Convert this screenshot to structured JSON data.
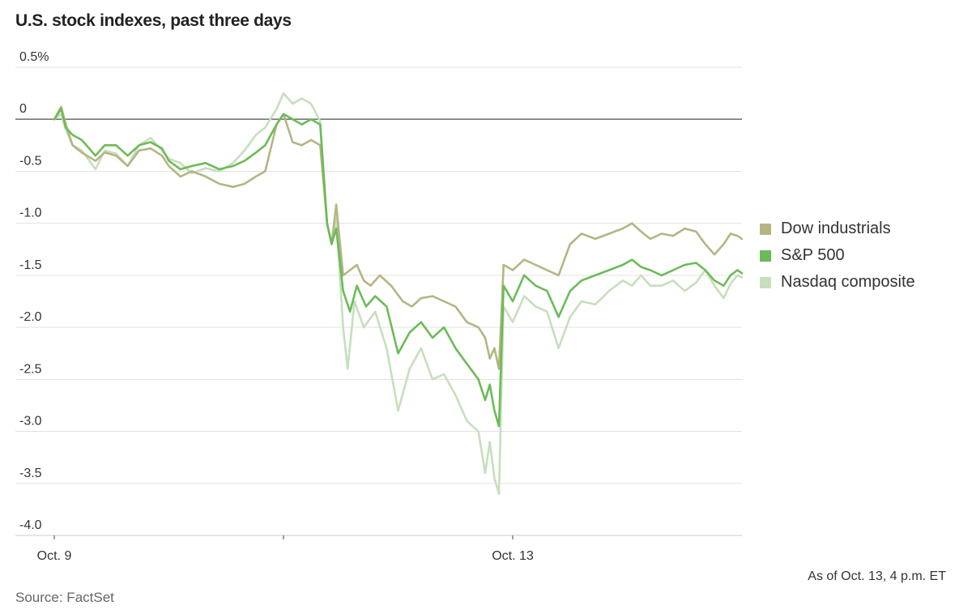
{
  "chart_data": {
    "type": "line",
    "title": "U.S. stock indexes, past three days",
    "ylim": [
      -4.0,
      0.5
    ],
    "y_ticks": [
      {
        "value": 0.5,
        "label": "0.5%"
      },
      {
        "value": 0,
        "label": "0"
      },
      {
        "value": -0.5,
        "label": "-0.5"
      },
      {
        "value": -1.0,
        "label": "-1.0"
      },
      {
        "value": -1.5,
        "label": "-1.5"
      },
      {
        "value": -2.0,
        "label": "-2.0"
      },
      {
        "value": -2.5,
        "label": "-2.5"
      },
      {
        "value": -3.0,
        "label": "-3.0"
      },
      {
        "value": -3.5,
        "label": "-3.5"
      },
      {
        "value": -4.0,
        "label": "-4.0"
      }
    ],
    "x_ticks": [
      {
        "pos": 0,
        "label": "Oct. 9"
      },
      {
        "pos": 1,
        "label": ""
      },
      {
        "pos": 2,
        "label": "Oct. 13"
      }
    ],
    "xlim": [
      0,
      3
    ],
    "grid": true,
    "legend": "right",
    "series": [
      {
        "name": "Nasdaq composite",
        "color": "#c6dfbd",
        "points": [
          [
            0,
            0
          ],
          [
            0.03,
            0.05
          ],
          [
            0.05,
            -0.1
          ],
          [
            0.08,
            -0.25
          ],
          [
            0.12,
            -0.3
          ],
          [
            0.18,
            -0.48
          ],
          [
            0.22,
            -0.3
          ],
          [
            0.27,
            -0.33
          ],
          [
            0.32,
            -0.45
          ],
          [
            0.37,
            -0.25
          ],
          [
            0.42,
            -0.18
          ],
          [
            0.47,
            -0.3
          ],
          [
            0.5,
            -0.38
          ],
          [
            0.55,
            -0.42
          ],
          [
            0.6,
            -0.52
          ],
          [
            0.66,
            -0.47
          ],
          [
            0.72,
            -0.5
          ],
          [
            0.78,
            -0.42
          ],
          [
            0.83,
            -0.3
          ],
          [
            0.88,
            -0.15
          ],
          [
            0.92,
            -0.08
          ],
          [
            0.97,
            0.1
          ],
          [
            1.0,
            0.25
          ],
          [
            1.04,
            0.15
          ],
          [
            1.08,
            0.2
          ],
          [
            1.12,
            0.15
          ],
          [
            1.16,
            -0.02
          ],
          [
            1.19,
            -1.0
          ],
          [
            1.21,
            -1.2
          ],
          [
            1.23,
            -0.95
          ],
          [
            1.26,
            -2.0
          ],
          [
            1.28,
            -2.4
          ],
          [
            1.31,
            -1.75
          ],
          [
            1.35,
            -2.0
          ],
          [
            1.4,
            -1.85
          ],
          [
            1.45,
            -2.2
          ],
          [
            1.5,
            -2.8
          ],
          [
            1.55,
            -2.4
          ],
          [
            1.6,
            -2.2
          ],
          [
            1.65,
            -2.5
          ],
          [
            1.7,
            -2.45
          ],
          [
            1.75,
            -2.65
          ],
          [
            1.8,
            -2.9
          ],
          [
            1.85,
            -3.0
          ],
          [
            1.88,
            -3.4
          ],
          [
            1.9,
            -3.1
          ],
          [
            1.92,
            -3.45
          ],
          [
            1.94,
            -3.6
          ],
          [
            1.96,
            -1.8
          ],
          [
            2.0,
            -1.95
          ],
          [
            2.05,
            -1.7
          ],
          [
            2.1,
            -1.8
          ],
          [
            2.15,
            -1.85
          ],
          [
            2.2,
            -2.2
          ],
          [
            2.25,
            -1.9
          ],
          [
            2.3,
            -1.75
          ],
          [
            2.36,
            -1.78
          ],
          [
            2.42,
            -1.65
          ],
          [
            2.48,
            -1.55
          ],
          [
            2.52,
            -1.6
          ],
          [
            2.56,
            -1.5
          ],
          [
            2.6,
            -1.6
          ],
          [
            2.65,
            -1.6
          ],
          [
            2.7,
            -1.55
          ],
          [
            2.75,
            -1.65
          ],
          [
            2.8,
            -1.57
          ],
          [
            2.84,
            -1.45
          ],
          [
            2.88,
            -1.6
          ],
          [
            2.92,
            -1.72
          ],
          [
            2.95,
            -1.58
          ],
          [
            2.98,
            -1.5
          ],
          [
            3.0,
            -1.52
          ]
        ]
      },
      {
        "name": "Dow industrials",
        "color": "#b5b584",
        "points": [
          [
            0,
            0
          ],
          [
            0.03,
            0.12
          ],
          [
            0.05,
            -0.05
          ],
          [
            0.08,
            -0.25
          ],
          [
            0.12,
            -0.32
          ],
          [
            0.18,
            -0.4
          ],
          [
            0.22,
            -0.32
          ],
          [
            0.27,
            -0.35
          ],
          [
            0.32,
            -0.45
          ],
          [
            0.37,
            -0.3
          ],
          [
            0.42,
            -0.28
          ],
          [
            0.47,
            -0.35
          ],
          [
            0.5,
            -0.45
          ],
          [
            0.55,
            -0.55
          ],
          [
            0.6,
            -0.5
          ],
          [
            0.66,
            -0.55
          ],
          [
            0.72,
            -0.62
          ],
          [
            0.78,
            -0.65
          ],
          [
            0.83,
            -0.62
          ],
          [
            0.88,
            -0.55
          ],
          [
            0.92,
            -0.5
          ],
          [
            0.97,
            -0.05
          ],
          [
            1.0,
            0.05
          ],
          [
            1.04,
            -0.22
          ],
          [
            1.08,
            -0.25
          ],
          [
            1.12,
            -0.2
          ],
          [
            1.16,
            -0.25
          ],
          [
            1.19,
            -1.0
          ],
          [
            1.21,
            -1.2
          ],
          [
            1.23,
            -0.82
          ],
          [
            1.26,
            -1.5
          ],
          [
            1.29,
            -1.45
          ],
          [
            1.32,
            -1.4
          ],
          [
            1.35,
            -1.55
          ],
          [
            1.38,
            -1.6
          ],
          [
            1.42,
            -1.5
          ],
          [
            1.47,
            -1.6
          ],
          [
            1.52,
            -1.75
          ],
          [
            1.56,
            -1.8
          ],
          [
            1.6,
            -1.72
          ],
          [
            1.65,
            -1.7
          ],
          [
            1.7,
            -1.75
          ],
          [
            1.75,
            -1.8
          ],
          [
            1.8,
            -1.95
          ],
          [
            1.85,
            -2.0
          ],
          [
            1.88,
            -2.1
          ],
          [
            1.9,
            -2.3
          ],
          [
            1.92,
            -2.2
          ],
          [
            1.94,
            -2.4
          ],
          [
            1.96,
            -1.4
          ],
          [
            2.0,
            -1.45
          ],
          [
            2.05,
            -1.35
          ],
          [
            2.1,
            -1.4
          ],
          [
            2.15,
            -1.45
          ],
          [
            2.2,
            -1.5
          ],
          [
            2.25,
            -1.2
          ],
          [
            2.3,
            -1.1
          ],
          [
            2.36,
            -1.15
          ],
          [
            2.42,
            -1.1
          ],
          [
            2.48,
            -1.05
          ],
          [
            2.52,
            -1.0
          ],
          [
            2.56,
            -1.08
          ],
          [
            2.6,
            -1.15
          ],
          [
            2.65,
            -1.1
          ],
          [
            2.7,
            -1.12
          ],
          [
            2.75,
            -1.05
          ],
          [
            2.8,
            -1.08
          ],
          [
            2.84,
            -1.2
          ],
          [
            2.88,
            -1.3
          ],
          [
            2.92,
            -1.2
          ],
          [
            2.95,
            -1.1
          ],
          [
            2.98,
            -1.12
          ],
          [
            3.0,
            -1.15
          ]
        ]
      },
      {
        "name": "S&P 500",
        "color": "#6cbb58",
        "points": [
          [
            0,
            0
          ],
          [
            0.03,
            0.1
          ],
          [
            0.05,
            -0.08
          ],
          [
            0.08,
            -0.15
          ],
          [
            0.12,
            -0.2
          ],
          [
            0.18,
            -0.35
          ],
          [
            0.22,
            -0.25
          ],
          [
            0.27,
            -0.25
          ],
          [
            0.32,
            -0.35
          ],
          [
            0.37,
            -0.25
          ],
          [
            0.42,
            -0.22
          ],
          [
            0.47,
            -0.28
          ],
          [
            0.5,
            -0.4
          ],
          [
            0.55,
            -0.48
          ],
          [
            0.6,
            -0.45
          ],
          [
            0.66,
            -0.42
          ],
          [
            0.72,
            -0.48
          ],
          [
            0.78,
            -0.45
          ],
          [
            0.83,
            -0.4
          ],
          [
            0.88,
            -0.32
          ],
          [
            0.92,
            -0.25
          ],
          [
            0.97,
            -0.05
          ],
          [
            1.0,
            0.05
          ],
          [
            1.04,
            0.0
          ],
          [
            1.08,
            -0.05
          ],
          [
            1.12,
            0.0
          ],
          [
            1.16,
            -0.05
          ],
          [
            1.19,
            -1.0
          ],
          [
            1.21,
            -1.2
          ],
          [
            1.23,
            -1.05
          ],
          [
            1.26,
            -1.65
          ],
          [
            1.29,
            -1.85
          ],
          [
            1.32,
            -1.6
          ],
          [
            1.36,
            -1.8
          ],
          [
            1.4,
            -1.7
          ],
          [
            1.45,
            -1.8
          ],
          [
            1.5,
            -2.25
          ],
          [
            1.55,
            -2.05
          ],
          [
            1.6,
            -1.95
          ],
          [
            1.65,
            -2.1
          ],
          [
            1.7,
            -2.0
          ],
          [
            1.75,
            -2.2
          ],
          [
            1.8,
            -2.35
          ],
          [
            1.85,
            -2.5
          ],
          [
            1.88,
            -2.7
          ],
          [
            1.9,
            -2.55
          ],
          [
            1.92,
            -2.8
          ],
          [
            1.94,
            -2.95
          ],
          [
            1.96,
            -1.6
          ],
          [
            2.0,
            -1.75
          ],
          [
            2.05,
            -1.5
          ],
          [
            2.1,
            -1.6
          ],
          [
            2.15,
            -1.65
          ],
          [
            2.2,
            -1.9
          ],
          [
            2.25,
            -1.65
          ],
          [
            2.3,
            -1.55
          ],
          [
            2.36,
            -1.5
          ],
          [
            2.42,
            -1.45
          ],
          [
            2.48,
            -1.4
          ],
          [
            2.52,
            -1.35
          ],
          [
            2.56,
            -1.42
          ],
          [
            2.6,
            -1.45
          ],
          [
            2.65,
            -1.5
          ],
          [
            2.7,
            -1.45
          ],
          [
            2.75,
            -1.4
          ],
          [
            2.8,
            -1.38
          ],
          [
            2.84,
            -1.45
          ],
          [
            2.88,
            -1.55
          ],
          [
            2.92,
            -1.6
          ],
          [
            2.95,
            -1.5
          ],
          [
            2.98,
            -1.45
          ],
          [
            3.0,
            -1.48
          ]
        ]
      }
    ],
    "legend_order": [
      "Dow industrials",
      "S&P 500",
      "Nasdaq composite"
    ]
  },
  "footer": {
    "as_of": "As of Oct. 13, 4 p.m. ET",
    "source": "Source: FactSet"
  }
}
